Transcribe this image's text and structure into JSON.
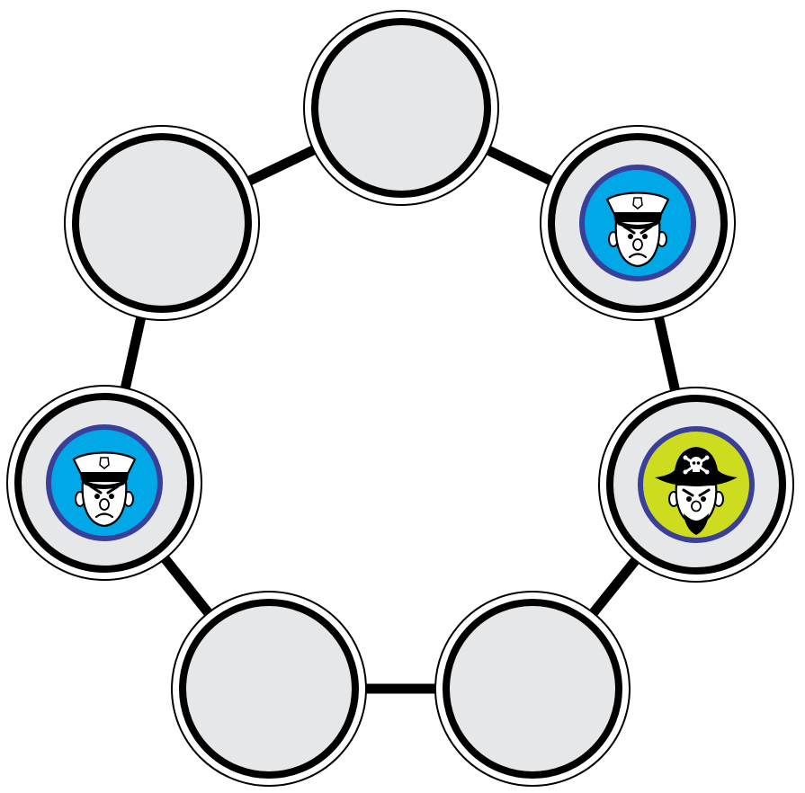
{
  "board": {
    "nodes": [
      {
        "id": "top",
        "token": "empty"
      },
      {
        "id": "upper-right",
        "token": "police"
      },
      {
        "id": "right",
        "token": "pirate"
      },
      {
        "id": "lower-right",
        "token": "empty"
      },
      {
        "id": "lower-left",
        "token": "empty"
      },
      {
        "id": "left",
        "token": "police"
      },
      {
        "id": "upper-left",
        "token": "empty"
      }
    ],
    "connections": [
      [
        "top",
        "upper-right"
      ],
      [
        "upper-right",
        "right"
      ],
      [
        "right",
        "lower-right"
      ],
      [
        "lower-right",
        "lower-left"
      ],
      [
        "lower-left",
        "left"
      ],
      [
        "left",
        "upper-left"
      ],
      [
        "upper-left",
        "top"
      ]
    ]
  },
  "colors": {
    "node_fill": "#e6e7e9",
    "ring": "#000000",
    "police_token_fill": "#00a8e8",
    "police_token_border": "#3a3f9a",
    "pirate_token_fill": "#cddc1e",
    "pirate_token_border": "#3a3f9a"
  },
  "icons": {
    "police": "police-officer-face-icon",
    "pirate": "pirate-captain-face-icon"
  }
}
